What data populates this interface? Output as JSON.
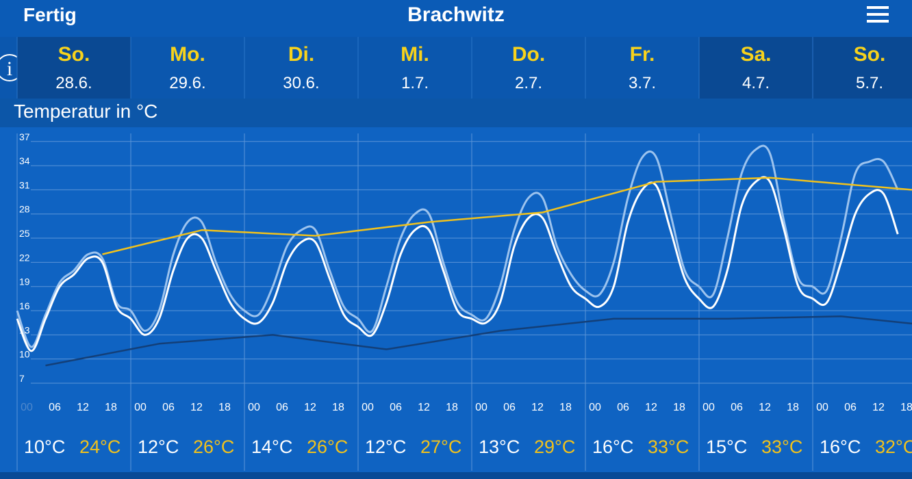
{
  "header": {
    "left": "Fertig",
    "title": "Brachwitz"
  },
  "days": [
    {
      "name": "So.",
      "date": "28.6.",
      "min": "10°C",
      "max": "24°C"
    },
    {
      "name": "Mo.",
      "date": "29.6.",
      "min": "12°C",
      "max": "26°C"
    },
    {
      "name": "Di.",
      "date": "30.6.",
      "min": "14°C",
      "max": "26°C"
    },
    {
      "name": "Mi.",
      "date": "1.7.",
      "min": "12°C",
      "max": "27°C"
    },
    {
      "name": "Do.",
      "date": "2.7.",
      "min": "13°C",
      "max": "29°C"
    },
    {
      "name": "Fr.",
      "date": "3.7.",
      "min": "16°C",
      "max": "33°C"
    },
    {
      "name": "Sa.",
      "date": "4.7.",
      "min": "15°C",
      "max": "33°C"
    },
    {
      "name": "So.",
      "date": "5.7.",
      "min": "16°C",
      "max": "32°C"
    }
  ],
  "section_title": "Temperatur in °C",
  "chart_data": {
    "type": "line",
    "hour_labels": [
      "00",
      "06",
      "12",
      "18"
    ],
    "xlim": [
      0,
      189
    ],
    "ylim": [
      6.15,
      38
    ],
    "yticks": [
      7,
      10,
      13,
      16,
      19,
      22,
      25,
      28,
      31,
      34,
      37
    ],
    "grid": true,
    "series": [
      {
        "color": "#9cc3ee",
        "x": [
          0,
          3,
          6,
          9,
          12,
          15,
          18,
          21,
          24,
          27,
          30,
          33,
          36,
          39,
          42,
          45,
          48,
          51,
          54,
          57,
          60,
          63,
          66,
          69,
          72,
          75,
          78,
          81,
          84,
          87,
          90,
          93,
          96,
          99,
          102,
          105,
          108,
          111,
          114,
          117,
          120,
          123,
          126,
          129,
          132,
          135,
          138,
          141,
          144,
          147,
          150,
          153,
          156,
          159,
          162,
          165,
          168,
          171,
          174,
          177,
          180,
          183,
          186
        ],
        "values": [
          16,
          11.5,
          15.5,
          19.5,
          21,
          23,
          22.5,
          17,
          16,
          13.5,
          16,
          23,
          27,
          27,
          22,
          18,
          16,
          15.5,
          19,
          24,
          26,
          26,
          21,
          16.5,
          15,
          13.5,
          19,
          25,
          28,
          28,
          22,
          17,
          15.5,
          15,
          19,
          26,
          30,
          30,
          24,
          20.5,
          18.5,
          18,
          22,
          30,
          35,
          35,
          28,
          21,
          19,
          18,
          25,
          33,
          36,
          35.5,
          27,
          20,
          19,
          18.5,
          25,
          33,
          34.5,
          34.5,
          31
        ]
      },
      {
        "color": "#ffffff",
        "x": [
          0,
          3,
          6,
          9,
          12,
          15,
          18,
          21,
          24,
          27,
          30,
          33,
          36,
          39,
          42,
          45,
          48,
          51,
          54,
          57,
          60,
          63,
          66,
          69,
          72,
          75,
          78,
          81,
          84,
          87,
          90,
          93,
          96,
          99,
          102,
          105,
          108,
          111,
          114,
          117,
          120,
          123,
          126,
          129,
          132,
          135,
          138,
          141,
          144,
          147,
          150,
          153,
          156,
          159,
          162,
          165,
          168,
          171,
          174,
          177,
          180,
          183,
          186
        ],
        "values": [
          15,
          11,
          15,
          19,
          20.5,
          22.5,
          22,
          16.5,
          15,
          13,
          15,
          21,
          25,
          25,
          21,
          17,
          15,
          14.5,
          17,
          22,
          24.5,
          24.5,
          20,
          15.5,
          14,
          13,
          17,
          23,
          26,
          26,
          21,
          16,
          15,
          14.5,
          17,
          24,
          27.5,
          27.5,
          23,
          19,
          17.5,
          16.5,
          19,
          27,
          31,
          31.5,
          26,
          20,
          17.5,
          16.5,
          21,
          29,
          32,
          32,
          26,
          19,
          17.5,
          17,
          22,
          28,
          30.5,
          30.5,
          25.5
        ]
      },
      {
        "color": "#f2c21b",
        "x": [
          18,
          39,
          63,
          87,
          111,
          135,
          159,
          189
        ],
        "values": [
          23,
          26,
          25.3,
          27,
          28.2,
          32,
          32.5,
          31
        ]
      },
      {
        "color": "#133f78",
        "x": [
          6,
          30,
          54,
          78,
          102,
          126,
          150,
          174,
          189
        ],
        "values": [
          9.2,
          11.9,
          13,
          11.2,
          13.5,
          15,
          15,
          15.3,
          14.4
        ]
      }
    ]
  }
}
